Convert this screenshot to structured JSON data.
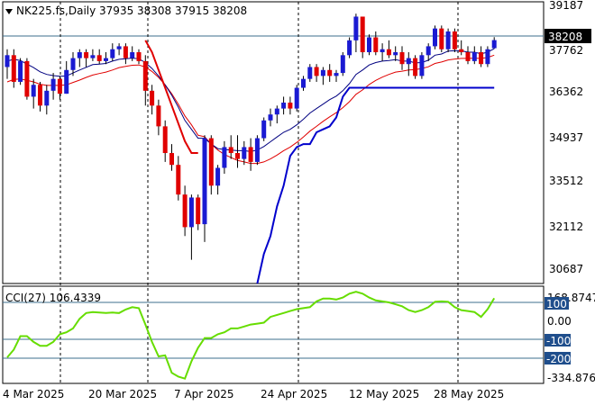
{
  "header": {
    "symbol_line": "NK225.fs,Daily  37935 38308 37915 38208",
    "cci_label": "CCI(27) 106.4339"
  },
  "price_axis": {
    "ticks": [
      "39187",
      "37762",
      "36362",
      "34937",
      "33512",
      "32112",
      "30687"
    ],
    "current_price": "38208"
  },
  "cci_axis": {
    "ticks": [
      "168.8747",
      "100",
      "0.00",
      "-100",
      "-200",
      "-334.8764"
    ]
  },
  "time_axis": {
    "ticks": [
      "4 Mar 2025",
      "20 Mar 2025",
      "7 Apr 2025",
      "24 Apr 2025",
      "12 May 2025",
      "28 May 2025"
    ]
  },
  "colors": {
    "bull_candle": "#1a1ad2",
    "bear_candle": "#e00000",
    "ema_short": "#000080",
    "ema_long": "#e00000",
    "stop_line_red": "#e00000",
    "stop_line_blue": "#0000cc",
    "cci_line": "#66dd00",
    "price_box_bg": "#000000",
    "cci_badge_bg": "#1f4e8c"
  },
  "chart_data": [
    {
      "type": "candlestick",
      "title": "NK225.fs,Daily",
      "ohlc_latest": {
        "open": 37935,
        "high": 38308,
        "low": 37915,
        "close": 38208
      },
      "ylim": [
        30000,
        39500
      ],
      "x_labels": [
        "4 Mar 2025",
        "20 Mar 2025",
        "7 Apr 2025",
        "24 Apr 2025",
        "12 May 2025",
        "28 May 2025"
      ],
      "candles": [
        [
          37300,
          37900,
          36900,
          37700
        ],
        [
          37700,
          37900,
          36600,
          36800
        ],
        [
          36800,
          37600,
          36700,
          37500
        ],
        [
          37500,
          37600,
          36200,
          36300
        ],
        [
          36300,
          36900,
          35900,
          36700
        ],
        [
          36700,
          36800,
          35800,
          36000
        ],
        [
          36000,
          36700,
          35700,
          36500
        ],
        [
          36500,
          37100,
          36200,
          36900
        ],
        [
          36900,
          37000,
          36200,
          36400
        ],
        [
          36400,
          37500,
          36400,
          37200
        ],
        [
          37200,
          37800,
          37000,
          37600
        ],
        [
          37600,
          37900,
          37300,
          37800
        ],
        [
          37800,
          37900,
          37300,
          37600
        ],
        [
          37600,
          37900,
          37500,
          37700
        ],
        [
          37700,
          37900,
          37400,
          37500
        ],
        [
          37500,
          37800,
          37400,
          37600
        ],
        [
          37600,
          38100,
          37500,
          37900
        ],
        [
          37900,
          38100,
          37700,
          38000
        ],
        [
          38000,
          38100,
          37400,
          37600
        ],
        [
          37600,
          38000,
          37500,
          37800
        ],
        [
          37800,
          37900,
          37400,
          37500
        ],
        [
          37500,
          37700,
          36000,
          36500
        ],
        [
          36500,
          36700,
          35700,
          36000
        ],
        [
          36000,
          36200,
          35000,
          35300
        ],
        [
          35300,
          35500,
          34100,
          34400
        ],
        [
          34400,
          34700,
          33800,
          34000
        ],
        [
          34000,
          34300,
          32800,
          33000
        ],
        [
          33000,
          33300,
          31600,
          31900
        ],
        [
          31900,
          33000,
          30800,
          32900
        ],
        [
          32900,
          33000,
          31800,
          32000
        ],
        [
          32000,
          35000,
          31400,
          34900
        ],
        [
          34900,
          35000,
          33000,
          33300
        ],
        [
          33300,
          34000,
          33000,
          33900
        ],
        [
          33900,
          34800,
          33700,
          34600
        ],
        [
          34600,
          35000,
          34200,
          34400
        ],
        [
          34400,
          35000,
          33900,
          34200
        ],
        [
          34200,
          34800,
          34000,
          34600
        ],
        [
          34600,
          34900,
          33800,
          34100
        ],
        [
          34100,
          35000,
          34000,
          34900
        ],
        [
          34900,
          35600,
          34800,
          35500
        ],
        [
          35500,
          35900,
          35300,
          35700
        ],
        [
          35700,
          36000,
          35400,
          35900
        ],
        [
          35900,
          36300,
          35700,
          36100
        ],
        [
          36100,
          36300,
          35700,
          35900
        ],
        [
          35900,
          36700,
          35800,
          36600
        ],
        [
          36600,
          37000,
          36500,
          36900
        ],
        [
          36900,
          37400,
          36800,
          37300
        ],
        [
          37300,
          37400,
          36800,
          37000
        ],
        [
          37000,
          37300,
          36700,
          37200
        ],
        [
          37200,
          37400,
          36800,
          37000
        ],
        [
          37000,
          37200,
          36800,
          37100
        ],
        [
          37100,
          37800,
          37000,
          37700
        ],
        [
          37700,
          38300,
          37600,
          38200
        ],
        [
          38200,
          39100,
          37800,
          39000
        ],
        [
          39000,
          39000,
          37600,
          37800
        ],
        [
          37800,
          38400,
          37700,
          38300
        ],
        [
          38300,
          38500,
          37700,
          37800
        ],
        [
          37800,
          38100,
          37500,
          37900
        ],
        [
          37900,
          38200,
          37600,
          37700
        ],
        [
          37700,
          38000,
          37500,
          37800
        ],
        [
          37800,
          38000,
          37200,
          37400
        ],
        [
          37400,
          37800,
          37000,
          37600
        ],
        [
          37600,
          37700,
          36900,
          37000
        ],
        [
          37000,
          37800,
          36900,
          37700
        ],
        [
          37700,
          38100,
          37500,
          38000
        ],
        [
          38000,
          38700,
          37900,
          38600
        ],
        [
          38600,
          38700,
          37800,
          37900
        ],
        [
          37900,
          38600,
          37800,
          38500
        ],
        [
          38500,
          38600,
          37800,
          37900
        ],
        [
          37900,
          38200,
          37700,
          37800
        ],
        [
          37800,
          38000,
          37400,
          37500
        ],
        [
          37500,
          38000,
          37400,
          37800
        ],
        [
          37800,
          38000,
          37300,
          37400
        ],
        [
          37400,
          38000,
          37300,
          37900
        ],
        [
          37935,
          38308,
          37915,
          38208
        ]
      ],
      "ema_short": [
        37500,
        37560,
        37520,
        37400,
        37280,
        37140,
        37050,
        37010,
        36990,
        37000,
        37100,
        37200,
        37290,
        37380,
        37400,
        37420,
        37500,
        37560,
        37580,
        37600,
        37580,
        37450,
        37250,
        37000,
        36700,
        36350,
        35950,
        35500,
        35200,
        34900,
        34900,
        34700,
        34550,
        34520,
        34500,
        34480,
        34480,
        34450,
        34500,
        34620,
        34780,
        34940,
        35100,
        35200,
        35350,
        35540,
        35750,
        35900,
        36050,
        36200,
        36320,
        36500,
        36740,
        37050,
        37200,
        37370,
        37450,
        37500,
        37520,
        37550,
        37500,
        37500,
        37440,
        37450,
        37530,
        37700,
        37740,
        37840,
        37850,
        37850,
        37800,
        37800,
        37750,
        37800,
        37920
      ],
      "ema_long": [
        36800,
        36880,
        36900,
        36850,
        36800,
        36720,
        36680,
        36680,
        36680,
        36700,
        36780,
        36860,
        36950,
        37030,
        37080,
        37130,
        37200,
        37280,
        37320,
        37360,
        37370,
        37300,
        37150,
        36950,
        36700,
        36400,
        36050,
        35650,
        35350,
        35000,
        34950,
        34700,
        34500,
        34350,
        34250,
        34150,
        34100,
        34050,
        34050,
        34100,
        34200,
        34330,
        34480,
        34600,
        34760,
        34940,
        35140,
        35300,
        35470,
        35620,
        35760,
        35930,
        36130,
        36380,
        36530,
        36710,
        36850,
        36960,
        37050,
        37130,
        37160,
        37200,
        37210,
        37250,
        37310,
        37420,
        37470,
        37540,
        37570,
        37590,
        37590,
        37600,
        37590,
        37620,
        37700
      ],
      "stop_red": [
        null,
        null,
        null,
        null,
        null,
        null,
        null,
        null,
        null,
        null,
        null,
        null,
        null,
        null,
        null,
        null,
        null,
        null,
        null,
        null,
        null,
        38200,
        37800,
        37200,
        36600,
        36000,
        35400,
        34800,
        34400,
        34400,
        null,
        null,
        null,
        null,
        null,
        null,
        null,
        null,
        null,
        null,
        null,
        null,
        null,
        null,
        null,
        null,
        null,
        null,
        null,
        null,
        null,
        null,
        null,
        null,
        null,
        null,
        null,
        null,
        null,
        null,
        null,
        null,
        null,
        null,
        null,
        null,
        null,
        null,
        null,
        null,
        null,
        null,
        null,
        null,
        null
      ],
      "stop_blue": [
        null,
        null,
        null,
        null,
        null,
        null,
        null,
        null,
        null,
        null,
        null,
        null,
        null,
        null,
        null,
        null,
        null,
        null,
        null,
        null,
        null,
        null,
        null,
        null,
        null,
        null,
        null,
        null,
        null,
        null,
        null,
        null,
        null,
        null,
        null,
        null,
        null,
        null,
        30000,
        31000,
        31600,
        32600,
        33300,
        34300,
        34600,
        34700,
        34700,
        35100,
        35200,
        35300,
        35600,
        36300,
        36600,
        36600,
        36600,
        36600,
        36600,
        36600,
        36600,
        36600,
        36600,
        36600,
        36600,
        36600,
        36600,
        36600,
        36600,
        36600,
        36600,
        36600,
        36600,
        36600,
        36600,
        36600,
        36600
      ],
      "current_price": 38208
    },
    {
      "type": "line",
      "title": "CCI(27) 106.4339",
      "series": [
        {
          "name": "CCI(27)",
          "values": [
            -200,
            -160,
            -90,
            -90,
            -120,
            -140,
            -140,
            -120,
            -80,
            -70,
            -50,
            0,
            30,
            35,
            32,
            30,
            32,
            30,
            48,
            60,
            55,
            -30,
            -120,
            -195,
            -190,
            -280,
            -300,
            -310,
            -220,
            -150,
            -100,
            -100,
            -80,
            -70,
            -50,
            -50,
            -40,
            -30,
            -25,
            -20,
            10,
            20,
            30,
            40,
            50,
            55,
            60,
            90,
            105,
            105,
            100,
            110,
            130,
            140,
            130,
            110,
            95,
            90,
            85,
            75,
            65,
            45,
            35,
            45,
            60,
            88,
            90,
            88,
            60,
            45,
            40,
            35,
            10,
            50,
            106.4339
          ]
        }
      ],
      "ylim": [
        -334.8764,
        168.8747
      ],
      "levels": [
        100,
        -100,
        -200
      ]
    }
  ]
}
